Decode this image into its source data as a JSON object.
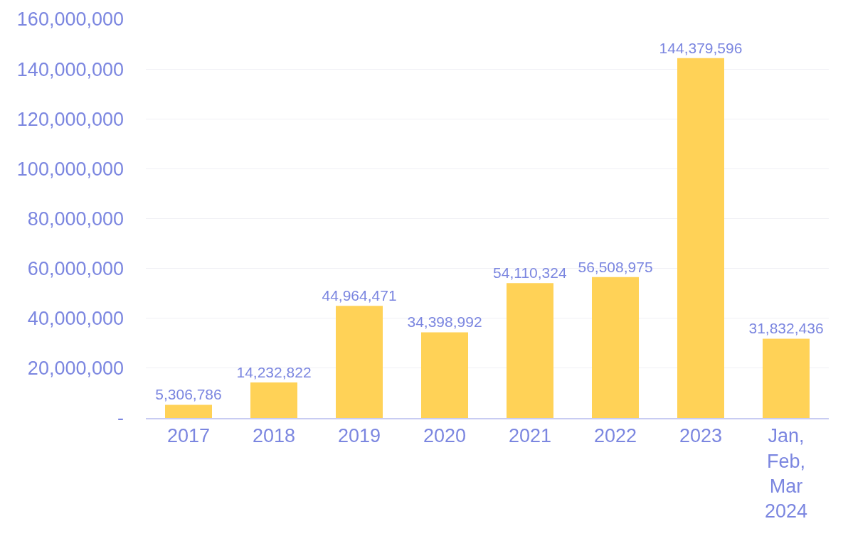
{
  "chart_data": {
    "type": "bar",
    "categories": [
      "2017",
      "2018",
      "2019",
      "2020",
      "2021",
      "2022",
      "2023",
      "Jan, Feb, Mar 2024"
    ],
    "values": [
      5306786,
      14232822,
      44964471,
      34398992,
      54110324,
      56508975,
      144379596,
      31832436
    ],
    "value_labels": [
      "5,306,786",
      "14,232,822",
      "44,964,471",
      "34,398,992",
      "54,110,324",
      "56,508,975",
      "144,379,596",
      "31,832,436"
    ],
    "color": "#ffd257",
    "grid": "y",
    "ylim": [
      0,
      160000000
    ],
    "yticks": [
      {
        "value": 0,
        "label": "-"
      },
      {
        "value": 20000000,
        "label": "20,000,000"
      },
      {
        "value": 40000000,
        "label": "40,000,000"
      },
      {
        "value": 60000000,
        "label": "60,000,000"
      },
      {
        "value": 80000000,
        "label": "80,000,000"
      },
      {
        "value": 100000000,
        "label": "100,000,000"
      },
      {
        "value": 120000000,
        "label": "120,000,000"
      },
      {
        "value": 140000000,
        "label": "140,000,000"
      },
      {
        "value": 160000000,
        "label": "160,000,000"
      }
    ]
  }
}
